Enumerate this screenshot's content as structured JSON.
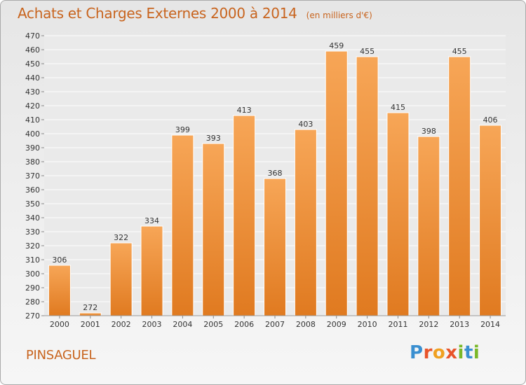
{
  "header": {
    "title": "Achats et Charges Externes 2000 à 2014",
    "subtitle": "(en milliers d'€)"
  },
  "footer": {
    "commune": "PINSAGUEL",
    "brand": "Proxiti"
  },
  "colors": {
    "title": "#c8641e",
    "bar_light": "#f7a657",
    "bar_dark": "#e07a20",
    "grid": "#ffffff",
    "text": "#333333"
  },
  "chart_data": {
    "type": "bar",
    "title": "Achats et Charges Externes 2000 à 2014",
    "subtitle": "(en milliers d'€)",
    "xlabel": "",
    "ylabel": "",
    "categories": [
      "2000",
      "2001",
      "2002",
      "2003",
      "2004",
      "2005",
      "2006",
      "2007",
      "2008",
      "2009",
      "2010",
      "2011",
      "2012",
      "2013",
      "2014"
    ],
    "values": [
      306,
      272,
      322,
      334,
      399,
      393,
      413,
      368,
      403,
      459,
      455,
      415,
      398,
      455,
      406
    ],
    "ylim": [
      270,
      470
    ],
    "ytick_step": 10,
    "grid": true,
    "data_labels": true
  }
}
